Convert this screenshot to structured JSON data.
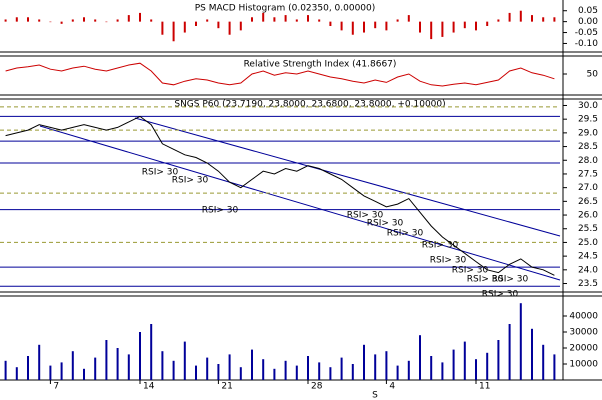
{
  "chart_data": [
    {
      "type": "bar",
      "title": "PS MACD Histogram (0.02350, 0.00000)",
      "color": "#cc0000",
      "values": [
        0.01,
        0.02,
        0.02,
        0.01,
        0.0,
        -0.01,
        0.01,
        0.02,
        0.01,
        0.0,
        0.01,
        0.03,
        0.04,
        0.01,
        -0.06,
        -0.09,
        -0.05,
        -0.02,
        0.01,
        -0.03,
        -0.06,
        -0.04,
        0.02,
        0.04,
        0.02,
        0.03,
        0.01,
        0.03,
        0.01,
        -0.02,
        -0.04,
        -0.06,
        -0.05,
        -0.03,
        -0.04,
        0.01,
        0.03,
        -0.05,
        -0.08,
        -0.07,
        -0.05,
        -0.03,
        -0.04,
        -0.02,
        0.01,
        0.04,
        0.05,
        0.03,
        0.02,
        0.02
      ],
      "ylim": [
        -0.13,
        0.09
      ],
      "yticks": [
        0.05,
        {
          "value": 0,
          "label": "0.00"
        },
        -0.05,
        {
          "value": -0.1,
          "label": "-0.10"
        }
      ]
    },
    {
      "type": "line",
      "title": "Relative Strength Index (41.8667)",
      "color": "#cc0000",
      "values": [
        55,
        60,
        62,
        65,
        58,
        55,
        60,
        63,
        58,
        55,
        60,
        65,
        68,
        55,
        35,
        32,
        38,
        42,
        40,
        35,
        32,
        35,
        50,
        55,
        48,
        52,
        50,
        55,
        50,
        45,
        42,
        38,
        35,
        40,
        36,
        45,
        50,
        38,
        32,
        30,
        33,
        35,
        32,
        36,
        40,
        55,
        60,
        52,
        48,
        42
      ],
      "ylim": [
        20,
        80
      ],
      "yticks": [
        50
      ]
    },
    {
      "type": "line",
      "title": "SNGS P60 (23.7190, 23.8000, 23.6800, 23.8000, +0.10000)",
      "color": "#000000",
      "values": [
        28.9,
        29.0,
        29.1,
        29.3,
        29.2,
        29.1,
        29.2,
        29.3,
        29.2,
        29.1,
        29.2,
        29.4,
        29.6,
        29.3,
        28.6,
        28.4,
        28.2,
        28.1,
        27.9,
        27.6,
        27.2,
        27.0,
        27.3,
        27.6,
        27.5,
        27.7,
        27.6,
        27.8,
        27.7,
        27.5,
        27.3,
        27.0,
        26.7,
        26.5,
        26.3,
        26.4,
        26.6,
        26.1,
        25.6,
        25.2,
        24.9,
        24.6,
        24.3,
        24.0,
        23.9,
        24.2,
        24.4,
        24.1,
        24.0,
        23.8
      ],
      "ylim": [
        23.3,
        30.2
      ],
      "yticks": [
        23.5,
        {
          "value": 24,
          "label": "24.0"
        },
        24.5,
        {
          "value": 25,
          "label": "25.0"
        },
        25.5,
        {
          "value": 26,
          "label": "26.0"
        },
        26.5,
        {
          "value": 27,
          "label": "27.0"
        },
        27.5,
        {
          "value": 28,
          "label": "28.0"
        },
        28.5,
        {
          "value": 29,
          "label": "29.0"
        },
        29.5,
        {
          "value": 30,
          "label": "30.0"
        }
      ],
      "levels": [
        29.6,
        28.7,
        27.9,
        26.2,
        24.1,
        23.4
      ],
      "level_color": "#000099",
      "dashed_levels": [
        29.95,
        29.1,
        26.8,
        25.0
      ],
      "dashed_color": "#999933",
      "annotations": [
        "RSI> 30",
        "RSI> 30",
        "RSI> 30",
        "RSI> 30",
        "RSI> 30",
        "RSI> 30",
        "RSI> 30",
        "RSI> 30",
        "RSI> 30",
        "RSI> 30",
        "RSI> 30",
        "RSI> 30"
      ]
    },
    {
      "type": "bar",
      "color": "#000099",
      "values": [
        12000,
        8000,
        15000,
        22000,
        9000,
        11000,
        18000,
        7000,
        14000,
        25000,
        20000,
        16000,
        30000,
        35000,
        18000,
        12000,
        24000,
        9000,
        14000,
        10000,
        16000,
        8000,
        19000,
        13000,
        7000,
        12000,
        9000,
        15000,
        11000,
        8000,
        14000,
        10000,
        22000,
        16000,
        18000,
        9000,
        12000,
        28000,
        15000,
        11000,
        19000,
        24000,
        13000,
        17000,
        25000,
        35000,
        48000,
        32000,
        22000,
        16000
      ],
      "ylim": [
        0,
        50000
      ],
      "yticks": [
        10000,
        20000,
        30000,
        40000
      ],
      "categories": [
        null,
        null,
        null,
        null,
        "7",
        null,
        null,
        null,
        null,
        null,
        null,
        null,
        "14",
        null,
        null,
        null,
        null,
        null,
        null,
        "21",
        null,
        null,
        null,
        null,
        null,
        null,
        null,
        "28",
        null,
        null,
        null,
        null,
        null,
        null,
        "4",
        null,
        null,
        null,
        null,
        null,
        null,
        null,
        "11",
        null,
        null,
        null,
        null,
        null,
        null,
        null
      ],
      "month_label": "S"
    }
  ]
}
